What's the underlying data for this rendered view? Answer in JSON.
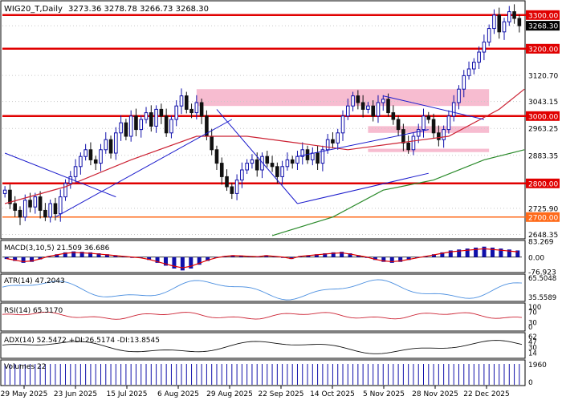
{
  "header": {
    "symbol": "WIG20_T,Daily",
    "ohlc": "3273.36 3278.78 3266.73 3268.30"
  },
  "colors": {
    "bull": "#1010aa",
    "bear": "#111111",
    "level": "#e00000",
    "zone": "#f4a6c0",
    "sma_slow": "#2a8a2a",
    "sma_fast": "#cc2233",
    "trend": "#1a1acc",
    "macd_hist": "#1010aa",
    "macd_signal": "#e00000",
    "atr": "#4b8fe0",
    "rsi": "#cc2233",
    "adx": "#111111"
  },
  "chart_data": [
    {
      "type": "candlestick",
      "title": "WIG20_T,Daily",
      "ylim": [
        2640,
        3340
      ],
      "y_ticks": [
        3300.0,
        3268.3,
        3200.0,
        3120.7,
        3043.15,
        3000.0,
        2963.25,
        2883.35,
        2800.0,
        2725.9,
        2700.0,
        2648.35
      ],
      "y_tick_labels": [
        "3300.00",
        "3268.30",
        "3200.00",
        "3120.70",
        "3043.15",
        "3000.00",
        "2963.25",
        "2883.35",
        "2800.00",
        "2725.90",
        "2700.00",
        "2648.35"
      ],
      "highlight_labels": [
        "3300.00",
        "3268.30",
        "3200.00",
        "3000.00",
        "2800.00",
        "2700.00"
      ],
      "x_labels": [
        "29 May 2025",
        "23 Jun 2025",
        "15 Jul 2025",
        "6 Aug 2025",
        "29 Aug 2025",
        "22 Sep 2025",
        "14 Oct 2025",
        "5 Nov 2025",
        "28 Nov 2025",
        "22 Dec 2025"
      ],
      "horizontal_levels": [
        3300,
        3200,
        3000,
        2800,
        2700
      ],
      "close": [
        2780,
        2740,
        2720,
        2700,
        2750,
        2730,
        2760,
        2720,
        2700,
        2740,
        2710,
        2760,
        2800,
        2820,
        2850,
        2880,
        2900,
        2870,
        2860,
        2900,
        2930,
        2890,
        2950,
        2980,
        2940,
        3000,
        2960,
        2990,
        3010,
        2970,
        3020,
        3000,
        2950,
        2990,
        3030,
        3060,
        3020,
        3010,
        3040,
        3000,
        2940,
        2900,
        2860,
        2820,
        2790,
        2770,
        2810,
        2840,
        2860,
        2870,
        2840,
        2880,
        2860,
        2850,
        2820,
        2850,
        2870,
        2860,
        2880,
        2900,
        2870,
        2890,
        2860,
        2900,
        2930,
        2920,
        2950,
        3000,
        3030,
        3060,
        3040,
        3020,
        3030,
        3000,
        3040,
        3050,
        3010,
        2990,
        2960,
        2920,
        2900,
        2940,
        2960,
        3000,
        2990,
        2950,
        2930,
        2960,
        3000,
        3040,
        3080,
        3120,
        3140,
        3160,
        3190,
        3220,
        3260,
        3300,
        3250,
        3280,
        3310,
        3290,
        3268.3
      ],
      "series": [
        {
          "name": "",
          "kind": "sma_slow",
          "values": [
            [
              53,
              2645
            ],
            [
              65,
              2700
            ],
            [
              75,
              2780
            ],
            [
              85,
              2810
            ],
            [
              95,
              2870
            ],
            [
              103,
              2900
            ]
          ]
        },
        {
          "name": "",
          "kind": "sma_fast",
          "values": [
            [
              0,
              2740
            ],
            [
              12,
              2790
            ],
            [
              25,
              2870
            ],
            [
              38,
              2940
            ],
            [
              48,
              2940
            ],
            [
              58,
              2920
            ],
            [
              68,
              2900
            ],
            [
              78,
              2920
            ],
            [
              88,
              2940
            ],
            [
              98,
              3020
            ],
            [
              103,
              3080
            ]
          ]
        }
      ],
      "zones": [
        [
          38,
          96,
          3030,
          3080
        ],
        [
          72,
          96,
          2950,
          2970
        ],
        [
          72,
          96,
          2893,
          2903
        ]
      ],
      "trendlines": [
        [
          0,
          2890,
          22,
          2760
        ],
        [
          10,
          2700,
          45,
          2990
        ],
        [
          42,
          3020,
          58,
          2740
        ],
        [
          58,
          2740,
          84,
          2830
        ],
        [
          58,
          2880,
          84,
          2960
        ],
        [
          75,
          3060,
          95,
          2990
        ]
      ]
    },
    {
      "type": "bar",
      "title": "MACD(3,10,5) 21.509 36.686",
      "ylim": [
        -76.923,
        83.269
      ],
      "y_tick_labels": [
        "83.269",
        "0.00",
        "-76.923"
      ],
      "values": [
        -10,
        -20,
        -30,
        -25,
        -12,
        5,
        15,
        25,
        30,
        28,
        25,
        20,
        15,
        10,
        5,
        0,
        -5,
        -15,
        -30,
        -45,
        -60,
        -70,
        -60,
        -40,
        -20,
        -5,
        5,
        10,
        8,
        5,
        3,
        10,
        5,
        0,
        -10,
        5,
        10,
        15,
        20,
        25,
        28,
        20,
        10,
        0,
        -15,
        -25,
        -30,
        -25,
        -15,
        -5,
        5,
        15,
        25,
        35,
        40,
        45,
        50,
        55,
        50,
        45,
        40,
        35
      ]
    },
    {
      "type": "line",
      "title": "ATR(14) 47.2043",
      "ylim": [
        30,
        70
      ],
      "y_tick_labels": [
        "65.5048",
        "35.5589"
      ]
    },
    {
      "type": "line",
      "title": "RSI(14) 65.3170",
      "ylim": [
        0,
        100
      ],
      "y_tick_labels": [
        "100",
        "70",
        "30",
        "0"
      ]
    },
    {
      "type": "line",
      "title": "ADX(14) 52.5472 +DI:26.5174 -DI:13.8545",
      "ylim": [
        0,
        70
      ],
      "y_tick_labels": [
        "62",
        "47",
        "30",
        "14"
      ]
    },
    {
      "type": "bar",
      "title": "Volumes 22",
      "ylim": [
        0,
        1960
      ],
      "y_tick_labels": [
        "1960",
        "0"
      ]
    }
  ]
}
